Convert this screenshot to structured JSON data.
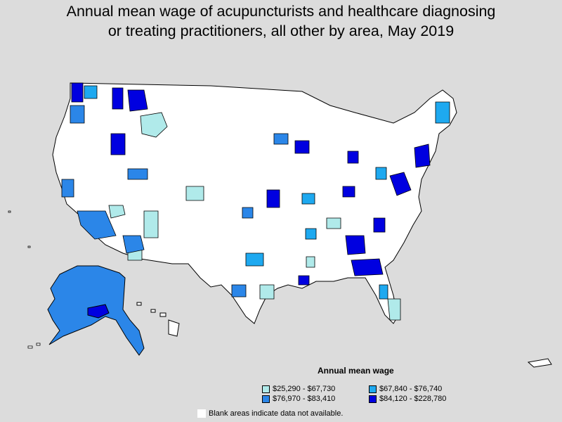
{
  "title": {
    "line1": "Annual mean wage of acupuncturists and healthcare diagnosing",
    "line2": "or treating practitioners, all other by area, May 2019"
  },
  "legend": {
    "title": "Annual mean wage",
    "items": [
      {
        "label": "$25,290 - $67,730",
        "color": "#b0eaea"
      },
      {
        "label": "$67,840 - $76,740",
        "color": "#1ea9f0"
      },
      {
        "label": "$76,970 - $83,410",
        "color": "#2b86e8"
      },
      {
        "label": "$84,120 - $228,780",
        "color": "#0000e0"
      }
    ],
    "note": "Blank areas indicate data not available."
  },
  "colors": {
    "background": "#dcdcdc",
    "land": "#ffffff",
    "border": "#000000"
  }
}
